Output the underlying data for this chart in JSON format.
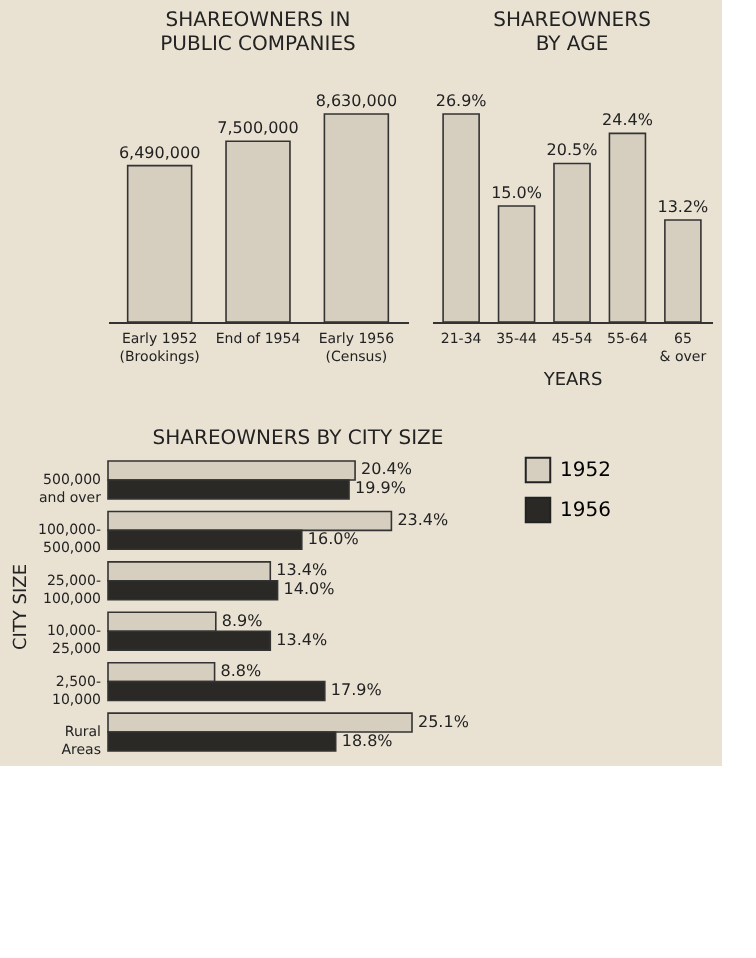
{
  "chart_data": [
    {
      "type": "bar",
      "title": [
        "SHAREOWNERS IN",
        "PUBLIC COMPANIES"
      ],
      "categories": [
        "Early 1952\n(Brookings)",
        "End of 1954",
        "Early 1956\n(Census)"
      ],
      "values": [
        6490000,
        7500000,
        8630000
      ],
      "value_labels": [
        "6,490,000",
        "7,500,000",
        "8,630,000"
      ],
      "color": "#d6cfc0"
    },
    {
      "type": "bar",
      "title": [
        "SHAREOWNERS",
        "BY AGE"
      ],
      "xlabel": "YEARS",
      "categories": [
        "21-34",
        "35-44",
        "45-54",
        "55-64",
        "65\n& over"
      ],
      "values": [
        26.9,
        15.0,
        20.5,
        24.4,
        13.2
      ],
      "value_labels": [
        "26.9%",
        "15.0%",
        "20.5%",
        "24.4%",
        "13.2%"
      ],
      "color": "#d6cfc0"
    },
    {
      "type": "bar",
      "orientation": "horizontal",
      "title": "SHAREOWNERS BY CITY SIZE",
      "ylabel": "CITY SIZE",
      "legend": "right",
      "categories": [
        "500,000\nand over",
        "100,000-\n500,000",
        "25,000-\n100,000",
        "10,000-\n25,000",
        "2,500-\n10,000",
        "Rural\nAreas"
      ],
      "series": [
        {
          "name": "1952",
          "color": "#d6cfc0",
          "values": [
            20.4,
            23.4,
            13.4,
            8.9,
            8.8,
            25.1
          ],
          "value_labels": [
            "20.4%",
            "23.4%",
            "13.4%",
            "8.9%",
            "8.8%",
            "25.1%"
          ]
        },
        {
          "name": "1956",
          "color": "#2b2926",
          "values": [
            19.9,
            16.0,
            14.0,
            13.4,
            17.9,
            18.8
          ],
          "value_labels": [
            "19.9%",
            "16.0%",
            "14.0%",
            "13.4%",
            "17.9%",
            "18.8%"
          ]
        }
      ]
    }
  ]
}
